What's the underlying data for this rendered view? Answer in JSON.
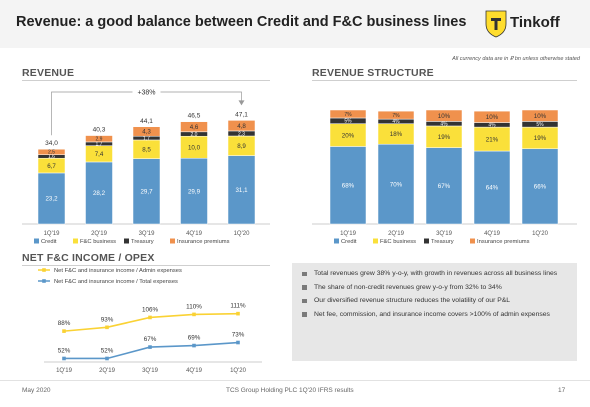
{
  "header": {
    "title": "Revenue: a good balance between Credit and F&C business lines",
    "logo_text": "Tinkoff",
    "note": "All currency data are in ₽ bn unless otherwise stated"
  },
  "colors": {
    "credit": "#5b97c9",
    "fc_business": "#fae03a",
    "treasury": "#333333",
    "insurance": "#f0914d",
    "admin_line": "#fad234",
    "total_line": "#5b97c9"
  },
  "chart_data": [
    {
      "type": "bar",
      "title": "REVENUE",
      "stacked": true,
      "categories": [
        "1Q'19",
        "2Q'19",
        "3Q'19",
        "4Q'19",
        "1Q'20"
      ],
      "series": [
        {
          "name": "Credit",
          "values": [
            23.2,
            28.2,
            29.7,
            29.9,
            31.1
          ],
          "labels": [
            "23,2",
            "28,2",
            "29,7",
            "29,9",
            "31,1"
          ]
        },
        {
          "name": "F&C business",
          "values": [
            6.7,
            7.4,
            8.5,
            10.0,
            8.9
          ],
          "labels": [
            "6,7",
            "7,4",
            "8,5",
            "10,0",
            "8,9"
          ]
        },
        {
          "name": "Treasury",
          "values": [
            1.6,
            1.7,
            1.7,
            2.0,
            2.3
          ],
          "labels": [
            "1,6",
            "1,7",
            "1,7",
            "2,0",
            "2,3"
          ]
        },
        {
          "name": "Insurance premiums",
          "values": [
            2.5,
            2.9,
            4.3,
            4.6,
            4.8
          ],
          "labels": [
            "2,5",
            "2,9",
            "4,3",
            "4,6",
            "4,8"
          ]
        }
      ],
      "totals": [
        34.0,
        40.3,
        44.1,
        46.5,
        47.1
      ],
      "total_labels": [
        "34,0",
        "40,3",
        "44,1",
        "46,5",
        "47,1"
      ],
      "growth_label": "+38%",
      "legend": "bottom"
    },
    {
      "type": "bar",
      "title": "REVENUE STRUCTURE",
      "stacked": true,
      "percent": true,
      "categories": [
        "1Q'19",
        "2Q'19",
        "3Q'19",
        "4Q'19",
        "1Q'20"
      ],
      "series": [
        {
          "name": "Credit",
          "values": [
            68,
            70,
            67,
            64,
            66
          ],
          "labels": [
            "68%",
            "70%",
            "67%",
            "64%",
            "66%"
          ]
        },
        {
          "name": "F&C business",
          "values": [
            20,
            18,
            19,
            21,
            19
          ],
          "labels": [
            "20%",
            "18%",
            "19%",
            "21%",
            "19%"
          ]
        },
        {
          "name": "Treasury",
          "values": [
            5,
            4,
            4,
            4,
            5
          ],
          "labels": [
            "5%",
            "4%",
            "4%",
            "4%",
            "5%"
          ]
        },
        {
          "name": "Insurance premiums",
          "values": [
            7,
            7,
            10,
            10,
            10
          ],
          "labels": [
            "7%",
            "7%",
            "10%",
            "10%",
            "10%"
          ]
        }
      ],
      "legend": "bottom"
    },
    {
      "type": "line",
      "title": "NET F&C INCOME / OPEX",
      "categories": [
        "1Q'19",
        "2Q'19",
        "3Q'19",
        "4Q'19",
        "1Q'20"
      ],
      "series": [
        {
          "name": "Net F&C and insurance income / Admin expenses",
          "values": [
            88,
            93,
            106,
            110,
            111
          ],
          "labels": [
            "88%",
            "93%",
            "106%",
            "110%",
            "111%"
          ]
        },
        {
          "name": "Net F&C and insurance income / Total expenses",
          "values": [
            52,
            52,
            67,
            69,
            73
          ],
          "labels": [
            "52%",
            "52%",
            "67%",
            "69%",
            "73%"
          ]
        }
      ],
      "legend": "top-left"
    }
  ],
  "bullets": [
    "Total revenues grew 38% y-o-y, with growth in revenues across all business lines",
    "The share of non-credit revenues grew y-o-y from 32% to 34%",
    "Our diversified revenue structure reduces the volatility of our P&L",
    "Net fee, commission, and insurance income covers >100% of admin expenses"
  ],
  "footer": {
    "date": "May 2020",
    "source": "TCS Group Holding PLC 1Q'20 IFRS results",
    "page": "17"
  }
}
